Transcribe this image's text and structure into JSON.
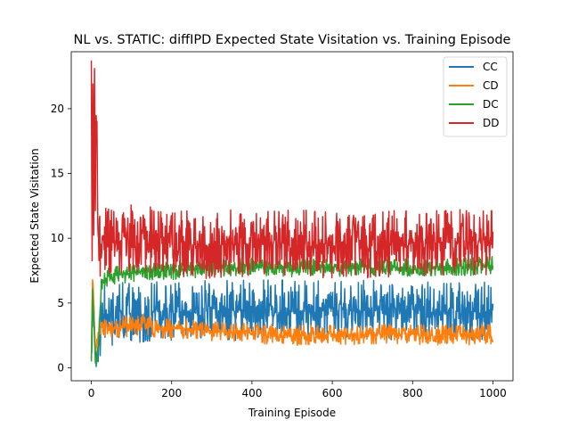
{
  "chart_data": {
    "type": "line",
    "title": "NL vs. STATIC: diffIPD Expected State Visitation vs. Training Episode",
    "xlabel": "Training Episode",
    "ylabel": "Expected State Visitation",
    "xlim": [
      -50,
      1050
    ],
    "ylim": [
      -1.0,
      24.4
    ],
    "xticks": [
      0,
      200,
      400,
      600,
      800,
      1000
    ],
    "yticks": [
      0,
      5,
      10,
      15,
      20
    ],
    "grid": false,
    "legend_position": "top-right",
    "series": [
      {
        "name": "CC",
        "color": "#1f77b4",
        "x": [
          0,
          3,
          6,
          10,
          14,
          18,
          25,
          35,
          50,
          70,
          100,
          130,
          160,
          200,
          250,
          300,
          350,
          400,
          450,
          500,
          550,
          600,
          650,
          700,
          750,
          800,
          850,
          900,
          950,
          1000
        ],
        "y": [
          0.8,
          3.5,
          5.5,
          1.2,
          0.6,
          1.5,
          3.8,
          4.2,
          4.0,
          4.3,
          4.2,
          4.1,
          4.4,
          4.3,
          4.2,
          4.6,
          4.4,
          4.5,
          4.6,
          4.4,
          4.5,
          4.6,
          4.4,
          4.5,
          4.4,
          4.5,
          4.3,
          4.4,
          4.2,
          4.5
        ],
        "noise_band": 2.3
      },
      {
        "name": "CD",
        "color": "#ff7f0e",
        "x": [
          0,
          3,
          6,
          10,
          14,
          18,
          25,
          35,
          50,
          70,
          100,
          130,
          160,
          200,
          250,
          300,
          350,
          400,
          450,
          500,
          550,
          600,
          650,
          700,
          750,
          800,
          850,
          900,
          950,
          1000
        ],
        "y": [
          1.0,
          6.8,
          5.2,
          1.0,
          2.0,
          2.6,
          3.2,
          3.1,
          3.0,
          3.2,
          3.2,
          3.4,
          3.1,
          3.0,
          3.0,
          2.8,
          2.7,
          2.6,
          2.6,
          2.5,
          2.6,
          2.6,
          2.5,
          2.6,
          2.6,
          2.6,
          2.5,
          2.6,
          2.5,
          2.6
        ],
        "noise_band": 0.8
      },
      {
        "name": "DC",
        "color": "#2ca02c",
        "x": [
          0,
          3,
          6,
          10,
          14,
          18,
          25,
          35,
          50,
          70,
          100,
          130,
          160,
          200,
          250,
          300,
          350,
          400,
          450,
          500,
          550,
          600,
          650,
          700,
          750,
          800,
          850,
          900,
          950,
          1000
        ],
        "y": [
          0.5,
          6.0,
          4.0,
          0.5,
          0.4,
          2.0,
          6.5,
          7.0,
          7.0,
          7.2,
          7.3,
          7.5,
          7.4,
          7.5,
          7.6,
          7.8,
          7.7,
          7.8,
          7.8,
          7.7,
          7.8,
          7.8,
          7.7,
          7.8,
          7.8,
          7.7,
          7.8,
          7.8,
          7.8,
          7.9
        ],
        "noise_band": 0.7
      },
      {
        "name": "DD",
        "color": "#d62728",
        "x": [
          0,
          2,
          4,
          6,
          8,
          10,
          12,
          14,
          16,
          18,
          25,
          35,
          50,
          70,
          100,
          130,
          160,
          200,
          250,
          300,
          350,
          400,
          450,
          500,
          550,
          600,
          650,
          700,
          750,
          800,
          850,
          900,
          950,
          1000
        ],
        "y": [
          23.0,
          8.0,
          22.5,
          10.0,
          23.5,
          12.0,
          20.0,
          18.0,
          11.0,
          9.0,
          10.0,
          9.8,
          9.7,
          9.8,
          10.0,
          9.9,
          9.8,
          9.7,
          9.5,
          9.4,
          9.6,
          9.5,
          9.6,
          9.7,
          9.6,
          9.5,
          9.6,
          9.5,
          9.6,
          9.5,
          9.6,
          9.7,
          9.6,
          9.7
        ],
        "noise_band": 2.6
      }
    ]
  }
}
